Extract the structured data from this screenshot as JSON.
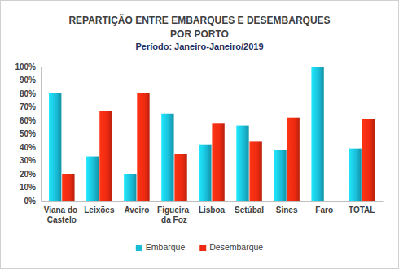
{
  "chart_data": {
    "type": "bar",
    "title": [
      "REPARTIÇÃO ENTRE EMBARQUES E DESEMBARQUES",
      "POR PORTO"
    ],
    "subtitle": "Período: Janeiro-Janeiro/2019",
    "categories": [
      "Viana do Castelo",
      "Leixões",
      "Aveiro",
      "Figueira da Foz",
      "Lisboa",
      "Setúbal",
      "Sines",
      "Faro",
      "TOTAL"
    ],
    "series": [
      {
        "name": "Embarque",
        "color": "#19bcd6",
        "values": [
          80,
          33,
          20,
          65,
          42,
          56,
          38,
          100,
          39
        ]
      },
      {
        "name": "Desembarque",
        "color": "#ee2a10",
        "values": [
          20,
          67,
          80,
          35,
          58,
          44,
          62,
          0,
          61
        ]
      }
    ],
    "ylim": [
      0,
      100
    ],
    "yticks": [
      {
        "value": 0,
        "label": "0%"
      },
      {
        "value": 10,
        "label": "10%"
      },
      {
        "value": 20,
        "label": "20%"
      },
      {
        "value": 30,
        "label": "30%"
      },
      {
        "value": 40,
        "label": "40%"
      },
      {
        "value": 50,
        "label": "50%"
      },
      {
        "value": 60,
        "label": "60%"
      },
      {
        "value": 70,
        "label": "70%"
      },
      {
        "value": 80,
        "label": "80%"
      },
      {
        "value": 90,
        "label": "90%"
      },
      {
        "value": 100,
        "label": "100%"
      }
    ],
    "grid": false,
    "legend": "bottom"
  }
}
